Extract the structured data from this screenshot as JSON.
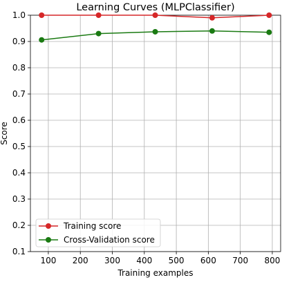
{
  "chart_data": {
    "type": "line",
    "title": "Learning Curves (MLPClassifier)",
    "xlabel": "Training examples",
    "ylabel": "Score",
    "x": [
      79,
      257,
      434,
      612,
      790
    ],
    "series": [
      {
        "name": "Training score",
        "color": "#d62728",
        "values": [
          1.0,
          1.0,
          1.0,
          0.99,
          1.0
        ]
      },
      {
        "name": "Cross-Validation score",
        "color": "#1a7a12",
        "values": [
          0.906,
          0.93,
          0.937,
          0.94,
          0.935
        ]
      }
    ],
    "xlim": [
      44,
      826
    ],
    "ylim": [
      0.1,
      1.0
    ],
    "xticks": [
      "100",
      "200",
      "300",
      "400",
      "500",
      "600",
      "700",
      "800"
    ],
    "yticks": [
      "0.1",
      "0.2",
      "0.3",
      "0.4",
      "0.5",
      "0.6",
      "0.7",
      "0.8",
      "0.9",
      "1.0"
    ],
    "grid": true,
    "legend_position": "lower-left"
  }
}
